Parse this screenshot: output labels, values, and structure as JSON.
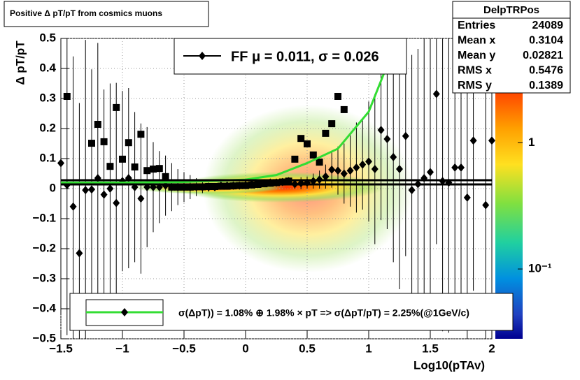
{
  "chart_data": {
    "type": "scatter",
    "title": "Positive Δ pT/pT from cosmics muons",
    "xlabel": "Log10(pTAv)",
    "ylabel": "Δ pT/pT",
    "xlim": [
      -1.5,
      2
    ],
    "ylim": [
      -0.5,
      0.5
    ],
    "xticks": [
      {
        "value": -1.5,
        "label": "−1.5"
      },
      {
        "value": -1,
        "label": "−1"
      },
      {
        "value": -0.5,
        "label": "−0.5"
      },
      0,
      0.5,
      1,
      1.5,
      2
    ],
    "yticks": [
      {
        "value": -0.5,
        "label": "−0.5"
      },
      {
        "value": -0.4,
        "label": "−0.4"
      },
      {
        "value": -0.3,
        "label": "−0.3"
      },
      {
        "value": -0.2,
        "label": "−0.2"
      },
      {
        "value": -0.1,
        "label": "−0.1"
      },
      0,
      0.1,
      0.2,
      0.3,
      0.4,
      0.5
    ],
    "grid": true,
    "series": [
      {
        "name": "FF μ =  0.011, σ =   0.026",
        "marker": "square",
        "color": "#000000",
        "x": [
          -1.45,
          -1.25,
          -1.2,
          -1.15,
          -1.1,
          -1.05,
          -1.0,
          -0.95,
          -0.9,
          -0.85,
          -0.8,
          -0.75,
          -0.7,
          -0.65,
          -0.6,
          -0.55,
          -0.5,
          -0.45,
          -0.4,
          -0.35,
          -0.3,
          -0.25,
          -0.2,
          -0.15,
          -0.1,
          -0.05,
          0,
          0.05,
          0.1,
          0.15,
          0.2,
          0.25,
          0.3,
          0.35,
          0.4,
          0.45,
          0.5,
          0.55,
          0.6,
          0.65,
          0.7,
          0.75,
          0.8
        ],
        "values": [
          0.307,
          0.151,
          0.214,
          0.156,
          0.074,
          0.27,
          0.098,
          0.153,
          0.072,
          0.181,
          0.06,
          0.065,
          0.067,
          0.04,
          0.005,
          0.005,
          0.005,
          0.005,
          0.006,
          0.006,
          0.007,
          0.007,
          0.008,
          0.008,
          0.009,
          0.01,
          0.01,
          0.012,
          0.014,
          0.016,
          0.018,
          0.02,
          0.022,
          0.025,
          0.098,
          0.167,
          0.149,
          0.112,
          0.088,
          0.184,
          0.216,
          0.307,
          0.263
        ]
      },
      {
        "name": "σ(ΔpT)) =  1.08% ⊕  1.98% × pT => σ(ΔpT/pT) =  2.25%(@1GeV/c)",
        "marker": "diamond",
        "color": "#000000",
        "legend_line_color": "#33dd33",
        "x": [
          -1.5,
          -1.45,
          -1.4,
          -1.35,
          -1.3,
          -1.25,
          -1.2,
          -1.15,
          -1.1,
          -1.05,
          -1.0,
          -0.95,
          -0.9,
          -0.85,
          -0.8,
          -0.75,
          -0.7,
          -0.65,
          -0.6,
          -0.55,
          -0.5,
          -0.45,
          -0.4,
          -0.35,
          -0.3,
          -0.25,
          -0.2,
          -0.15,
          -0.1,
          -0.05,
          0,
          0.05,
          0.1,
          0.15,
          0.2,
          0.25,
          0.3,
          0.35,
          0.4,
          0.45,
          0.5,
          0.55,
          0.6,
          0.65,
          0.7,
          0.75,
          0.8,
          0.85,
          0.9,
          0.95,
          1.0,
          1.05,
          1.1,
          1.15,
          1.2,
          1.25,
          1.3,
          1.35,
          1.4,
          1.45,
          1.5,
          1.55,
          1.6,
          1.65,
          1.7,
          1.75,
          1.8,
          1.85,
          1.95,
          2.0
        ],
        "values": [
          0.085,
          0.012,
          -0.06,
          -0.215,
          -0.005,
          -0.003,
          0.035,
          -0.02,
          0.0,
          -0.048,
          0.025,
          0.035,
          0.005,
          -0.033,
          0.005,
          0.005,
          0.005,
          0.01,
          0.005,
          0.005,
          0.005,
          0.005,
          0.005,
          0.005,
          0.005,
          0.005,
          0.01,
          0.01,
          0.01,
          0.01,
          0.012,
          0.015,
          0.015,
          0.018,
          0.02,
          0.02,
          0.022,
          0.025,
          0.015,
          0.018,
          0.02,
          0.025,
          0.03,
          0.04,
          0.063,
          0.06,
          0.05,
          0.06,
          0.07,
          0.08,
          0.09,
          0.065,
          0.195,
          0.165,
          0.105,
          0.065,
          0.175,
          -0.005,
          0.015,
          0.035,
          0.055,
          0.315,
          0.025,
          0.02,
          0.07,
          0.07,
          -0.03,
          0.16,
          -0.055,
          0.16
        ],
        "errors": [
          0.5,
          0.5,
          0.5,
          0.5,
          0.5,
          0.4,
          0.45,
          0.35,
          0.35,
          0.4,
          0.3,
          0.3,
          0.25,
          0.25,
          0.2,
          0.15,
          0.12,
          0.1,
          0.08,
          0.06,
          0.05,
          0.04,
          0.03,
          0.02,
          0.015,
          0.01,
          0.01,
          0.01,
          0.01,
          0.01,
          0.01,
          0.01,
          0.01,
          0.01,
          0.01,
          0.01,
          0.01,
          0.01,
          0.015,
          0.02,
          0.02,
          0.025,
          0.03,
          0.04,
          0.06,
          0.08,
          0.1,
          0.12,
          0.15,
          0.15,
          0.2,
          0.25,
          0.3,
          0.3,
          0.35,
          0.4,
          0.4,
          0.45,
          0.45,
          0.5,
          0.5,
          0.5,
          0.5,
          0.5,
          0.5,
          0.5,
          0.5,
          0.5,
          0.5,
          0.5
        ]
      },
      {
        "kind": "line",
        "color": "#33dd33",
        "x": [
          -1.5,
          -1.0,
          -0.5,
          0,
          0.25,
          0.5,
          0.75,
          1.0,
          1.13
        ],
        "values": [
          0.02,
          0.02,
          0.022,
          0.03,
          0.045,
          0.085,
          0.133,
          0.256,
          0.39
        ]
      },
      {
        "kind": "line",
        "color": "#000000",
        "x": [
          -1.5,
          2
        ],
        "values": [
          0.028,
          0.028
        ]
      },
      {
        "kind": "line",
        "color": "#000000",
        "x": [
          -1.5,
          2
        ],
        "values": [
          0.014,
          0.014
        ]
      }
    ],
    "zlim": [
      0.028,
      6.7
    ],
    "zlog": true,
    "zticks": [
      {
        "value": 1,
        "label": "1"
      },
      {
        "value": 0.1,
        "label": "10⁻¹"
      }
    ]
  },
  "stats_box": {
    "title": "DelpTRPos",
    "rows": [
      [
        "Entries",
        "24089"
      ],
      [
        "Mean x",
        "0.3104"
      ],
      [
        "Mean y",
        "0.02821"
      ],
      [
        "RMS x",
        "0.5476"
      ],
      [
        "RMS y",
        "0.1389"
      ]
    ]
  }
}
